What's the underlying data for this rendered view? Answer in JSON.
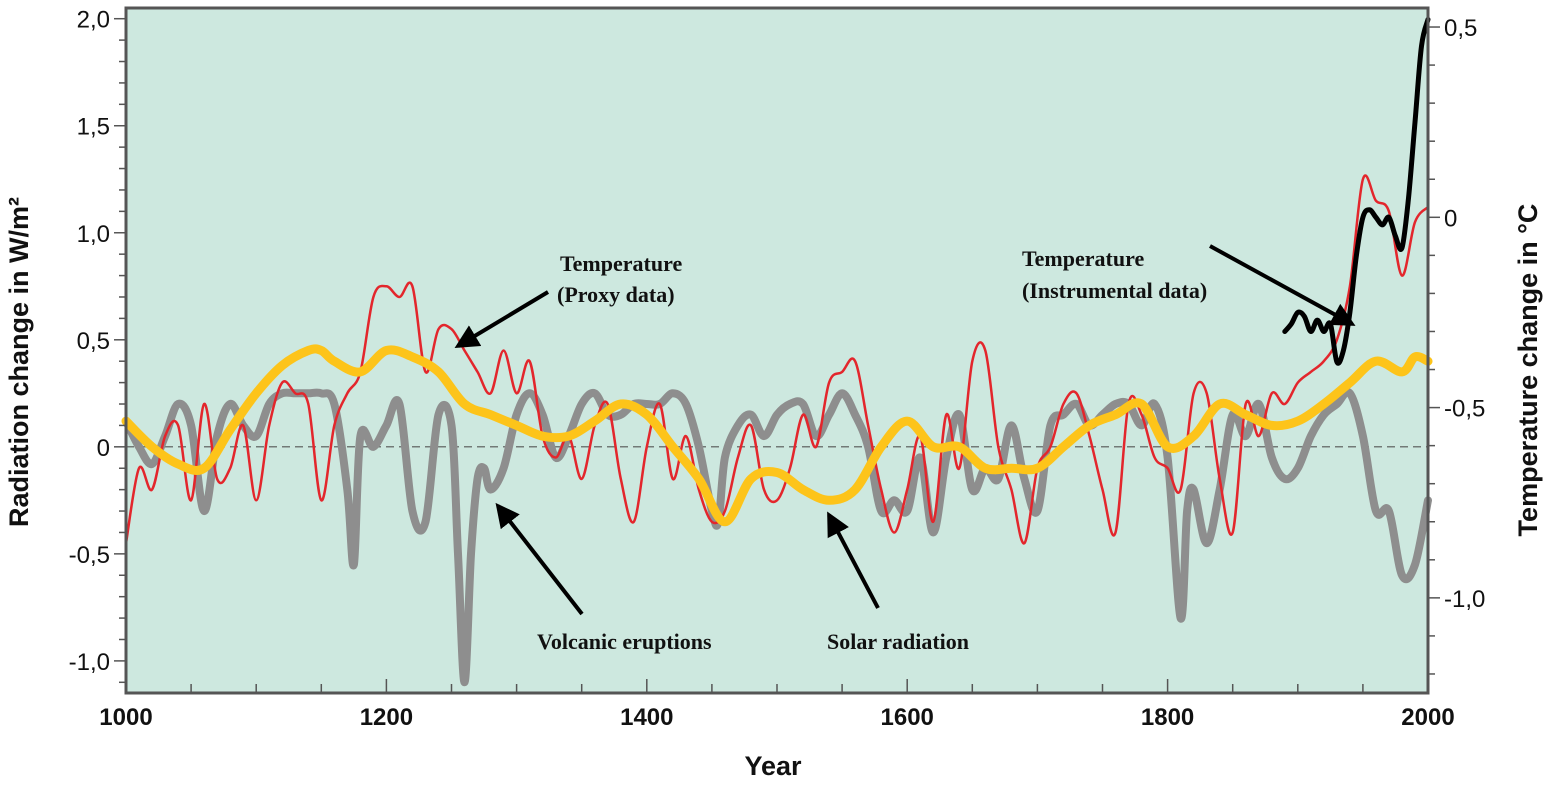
{
  "chart_data": {
    "type": "line",
    "xlabel": "Year",
    "ylabel_left": "Radiation change in W/m²",
    "ylabel_right": "Temperature change in °C",
    "xlim": [
      1000,
      2000
    ],
    "ylim_left": [
      -1.15,
      2.05
    ],
    "ylim_right": [
      -1.25,
      0.55
    ],
    "x_ticks": [
      1000,
      1200,
      1400,
      1600,
      1800,
      2000
    ],
    "x_tick_labels": [
      "1000",
      "1200",
      "1400",
      "1600",
      "1800",
      "2000"
    ],
    "y_left_ticks": [
      -1.0,
      -0.5,
      0,
      0.5,
      1.0,
      1.5,
      2.0
    ],
    "y_left_tick_labels": [
      "-1,0",
      "-0,5",
      "0",
      "0,5",
      "1,0",
      "1,5",
      "2,0"
    ],
    "y_right_ticks": [
      -1.0,
      -0.5,
      0,
      0.5
    ],
    "y_right_tick_labels": [
      "-1,0",
      "-0,5",
      "0",
      "0,5"
    ],
    "grid": false,
    "background": "#cde8df",
    "zero_line": true,
    "series": [
      {
        "id": "volcanic",
        "axis": "left",
        "color": "#8e8e8e",
        "x": [
          1000,
          1010,
          1020,
          1030,
          1040,
          1050,
          1060,
          1070,
          1080,
          1090,
          1100,
          1110,
          1120,
          1130,
          1140,
          1150,
          1160,
          1170,
          1175,
          1180,
          1190,
          1200,
          1210,
          1220,
          1230,
          1240,
          1250,
          1255,
          1260,
          1265,
          1270,
          1275,
          1280,
          1290,
          1300,
          1310,
          1320,
          1330,
          1340,
          1350,
          1360,
          1370,
          1380,
          1390,
          1400,
          1410,
          1420,
          1430,
          1440,
          1450,
          1455,
          1460,
          1470,
          1480,
          1490,
          1500,
          1510,
          1520,
          1530,
          1540,
          1550,
          1560,
          1570,
          1580,
          1590,
          1600,
          1610,
          1620,
          1630,
          1640,
          1650,
          1660,
          1670,
          1680,
          1690,
          1700,
          1710,
          1720,
          1730,
          1740,
          1750,
          1760,
          1770,
          1780,
          1790,
          1800,
          1810,
          1815,
          1820,
          1830,
          1840,
          1850,
          1860,
          1870,
          1880,
          1890,
          1900,
          1910,
          1920,
          1930,
          1940,
          1950,
          1960,
          1970,
          1980,
          1990,
          2000
        ],
        "values": [
          0.12,
          0.0,
          -0.08,
          0.05,
          0.2,
          0.1,
          -0.3,
          0.05,
          0.2,
          0.1,
          0.05,
          0.2,
          0.25,
          0.25,
          0.25,
          0.25,
          0.2,
          -0.2,
          -0.55,
          0.05,
          0.0,
          0.1,
          0.2,
          -0.3,
          -0.35,
          0.15,
          0.1,
          -0.5,
          -1.1,
          -0.5,
          -0.15,
          -0.1,
          -0.2,
          -0.1,
          0.15,
          0.25,
          0.15,
          -0.05,
          0.05,
          0.2,
          0.25,
          0.15,
          0.15,
          0.2,
          0.2,
          0.2,
          0.25,
          0.2,
          0.0,
          -0.3,
          -0.35,
          -0.05,
          0.1,
          0.15,
          0.05,
          0.15,
          0.2,
          0.2,
          0.05,
          0.15,
          0.25,
          0.15,
          0.0,
          -0.3,
          -0.25,
          -0.3,
          -0.05,
          -0.4,
          -0.05,
          0.15,
          -0.2,
          -0.1,
          -0.15,
          0.1,
          -0.15,
          -0.3,
          0.1,
          0.15,
          0.2,
          0.1,
          0.15,
          0.2,
          0.2,
          0.1,
          0.2,
          -0.05,
          -0.8,
          -0.3,
          -0.2,
          -0.45,
          -0.2,
          0.15,
          0.05,
          0.2,
          -0.05,
          -0.15,
          -0.1,
          0.05,
          0.15,
          0.2,
          0.25,
          0.05,
          -0.3,
          -0.3,
          -0.6,
          -0.55,
          -0.25
        ]
      },
      {
        "id": "proxy_temperature",
        "axis": "left",
        "color": "#e3262c",
        "x": [
          1000,
          1010,
          1020,
          1030,
          1040,
          1050,
          1060,
          1070,
          1080,
          1090,
          1100,
          1110,
          1120,
          1130,
          1140,
          1150,
          1160,
          1170,
          1180,
          1190,
          1200,
          1210,
          1220,
          1230,
          1240,
          1250,
          1260,
          1270,
          1280,
          1290,
          1300,
          1310,
          1320,
          1330,
          1340,
          1350,
          1360,
          1370,
          1380,
          1390,
          1400,
          1410,
          1420,
          1430,
          1440,
          1450,
          1460,
          1470,
          1480,
          1490,
          1500,
          1510,
          1520,
          1530,
          1540,
          1550,
          1560,
          1570,
          1580,
          1590,
          1600,
          1610,
          1620,
          1630,
          1640,
          1650,
          1660,
          1670,
          1680,
          1690,
          1700,
          1710,
          1720,
          1730,
          1740,
          1750,
          1760,
          1770,
          1780,
          1790,
          1800,
          1810,
          1820,
          1830,
          1840,
          1850,
          1860,
          1870,
          1880,
          1890,
          1900,
          1910,
          1920,
          1930,
          1940,
          1950,
          1960,
          1970,
          1980,
          1990,
          2000
        ],
        "values": [
          -0.45,
          -0.1,
          -0.2,
          0.05,
          0.1,
          -0.25,
          0.2,
          -0.15,
          -0.1,
          0.1,
          -0.25,
          0.1,
          0.3,
          0.25,
          0.2,
          -0.25,
          0.1,
          0.25,
          0.35,
          0.7,
          0.75,
          0.7,
          0.75,
          0.35,
          0.55,
          0.55,
          0.45,
          0.35,
          0.25,
          0.45,
          0.25,
          0.4,
          0.05,
          -0.05,
          0.05,
          -0.15,
          0.1,
          0.2,
          -0.15,
          -0.35,
          0.0,
          0.2,
          -0.15,
          0.05,
          -0.2,
          -0.35,
          -0.3,
          -0.05,
          0.1,
          -0.2,
          -0.25,
          -0.1,
          0.15,
          0.0,
          0.3,
          0.35,
          0.4,
          0.1,
          -0.2,
          -0.4,
          -0.2,
          0.05,
          -0.35,
          0.15,
          -0.1,
          0.4,
          0.45,
          0.0,
          -0.2,
          -0.45,
          -0.1,
          0.0,
          0.2,
          0.25,
          0.05,
          -0.2,
          -0.4,
          0.2,
          0.15,
          -0.05,
          -0.1,
          -0.2,
          0.25,
          0.25,
          -0.15,
          -0.4,
          0.2,
          0.05,
          0.25,
          0.2,
          0.3,
          0.35,
          0.4,
          0.5,
          0.75,
          1.25,
          1.15,
          1.1,
          0.8,
          1.05,
          1.12
        ]
      },
      {
        "id": "solar",
        "axis": "left",
        "color": "#fdc41a",
        "x": [
          1000,
          1020,
          1040,
          1060,
          1080,
          1100,
          1120,
          1140,
          1150,
          1160,
          1180,
          1200,
          1220,
          1240,
          1260,
          1280,
          1300,
          1320,
          1340,
          1360,
          1380,
          1400,
          1420,
          1440,
          1460,
          1480,
          1500,
          1520,
          1540,
          1560,
          1580,
          1600,
          1620,
          1640,
          1660,
          1680,
          1700,
          1720,
          1740,
          1760,
          1780,
          1800,
          1820,
          1840,
          1860,
          1880,
          1900,
          1920,
          1940,
          1960,
          1980,
          1990,
          2000
        ],
        "values": [
          0.12,
          0.0,
          -0.08,
          -0.1,
          0.08,
          0.25,
          0.38,
          0.45,
          0.45,
          0.4,
          0.35,
          0.45,
          0.42,
          0.35,
          0.2,
          0.15,
          0.1,
          0.05,
          0.05,
          0.12,
          0.2,
          0.15,
          0.0,
          -0.15,
          -0.35,
          -0.15,
          -0.12,
          -0.2,
          -0.25,
          -0.2,
          0.0,
          0.12,
          0.0,
          0.0,
          -0.1,
          -0.1,
          -0.1,
          0.0,
          0.1,
          0.15,
          0.2,
          0.0,
          0.05,
          0.2,
          0.15,
          0.1,
          0.12,
          0.2,
          0.3,
          0.4,
          0.35,
          0.42,
          0.4
        ]
      },
      {
        "id": "instrumental_temperature",
        "axis": "right",
        "color": "#000000",
        "x": [
          1890,
          1895,
          1900,
          1905,
          1910,
          1915,
          1920,
          1925,
          1930,
          1935,
          1940,
          1945,
          1950,
          1955,
          1960,
          1965,
          1970,
          1975,
          1980,
          1985,
          1990,
          1995,
          2000
        ],
        "values": [
          -0.3,
          -0.28,
          -0.25,
          -0.26,
          -0.3,
          -0.27,
          -0.3,
          -0.28,
          -0.38,
          -0.35,
          -0.25,
          -0.1,
          0.0,
          0.02,
          0.0,
          -0.02,
          0.0,
          -0.05,
          -0.08,
          0.05,
          0.25,
          0.45,
          0.52
        ]
      }
    ],
    "annotations": [
      {
        "lines": [
          "Temperature",
          "(Proxy data)"
        ],
        "points_to": "proxy_temperature"
      },
      {
        "lines": [
          "Temperature",
          "(Instrumental data)"
        ],
        "points_to": "instrumental_temperature"
      },
      {
        "lines": [
          "Volcanic eruptions"
        ],
        "points_to": "volcanic"
      },
      {
        "lines": [
          "Solar radiation"
        ],
        "points_to": "solar"
      }
    ]
  }
}
